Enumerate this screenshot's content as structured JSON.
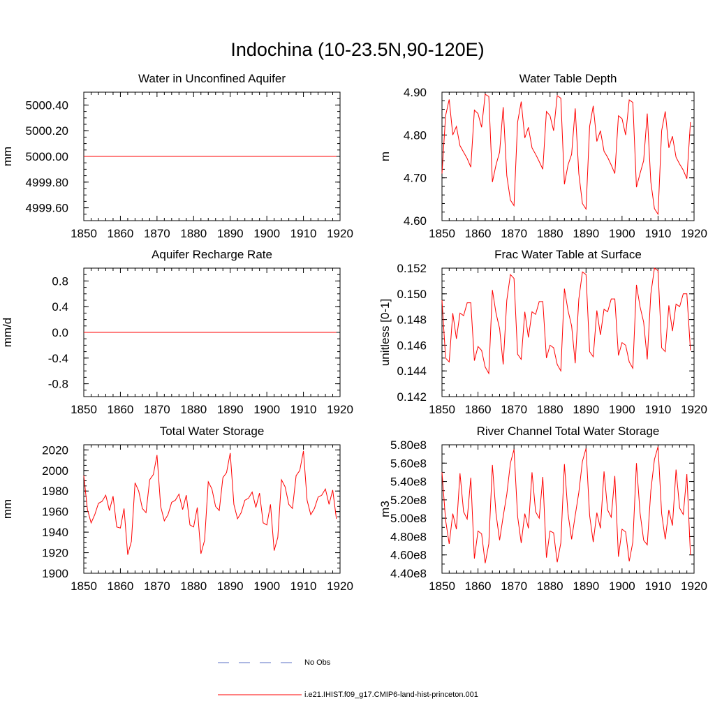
{
  "figure": {
    "title": "Indochina (10-23.5N,90-120E)",
    "legend": {
      "obs_label": "No Obs",
      "obs_color": "#5a6fc4",
      "model_label": "i.e21.IHIST.f09_g17.CMIP6-land-hist-princeton.001",
      "model_color": "#ff0000"
    }
  },
  "chart_data": [
    {
      "type": "line",
      "title": "Water in Unconfined Aquifer",
      "ylabel": "mm",
      "xlim": [
        1850,
        1920
      ],
      "ylim": [
        4999.5,
        5000.5
      ],
      "xticks": [
        1850,
        1860,
        1870,
        1880,
        1890,
        1900,
        1910,
        1920
      ],
      "yticks": [
        4999.6,
        4999.8,
        5000.0,
        5000.2,
        5000.4
      ],
      "ytick_labels": [
        "4999.60",
        "4999.80",
        "5000.00",
        "5000.20",
        "5000.40"
      ],
      "yminor": 0.05,
      "x_start": 1850,
      "series": [
        {
          "color": "#ff0000",
          "values": [
            5000,
            5000,
            5000,
            5000,
            5000,
            5000,
            5000,
            5000,
            5000,
            5000,
            5000,
            5000,
            5000,
            5000,
            5000,
            5000,
            5000,
            5000,
            5000,
            5000,
            5000,
            5000,
            5000,
            5000,
            5000,
            5000,
            5000,
            5000,
            5000,
            5000,
            5000,
            5000,
            5000,
            5000,
            5000,
            5000,
            5000,
            5000,
            5000,
            5000,
            5000,
            5000,
            5000,
            5000,
            5000,
            5000,
            5000,
            5000,
            5000,
            5000,
            5000,
            5000,
            5000,
            5000,
            5000,
            5000,
            5000,
            5000,
            5000,
            5000,
            5000,
            5000,
            5000,
            5000,
            5000,
            5000,
            5000,
            5000,
            5000,
            5000
          ]
        }
      ]
    },
    {
      "type": "line",
      "title": "Water Table Depth",
      "ylabel": "m",
      "xlim": [
        1850,
        1920
      ],
      "ylim": [
        4.6,
        4.9
      ],
      "xticks": [
        1850,
        1860,
        1870,
        1880,
        1890,
        1900,
        1910,
        1920
      ],
      "yticks": [
        4.6,
        4.7,
        4.8,
        4.9
      ],
      "ytick_labels": [
        "4.60",
        "4.70",
        "4.80",
        "4.90"
      ],
      "yminor": 0.02,
      "x_start": 1850,
      "series": [
        {
          "color": "#ff0000",
          "values": [
            4.71,
            4.845,
            4.883,
            4.8,
            4.82,
            4.775,
            4.76,
            4.745,
            4.725,
            4.858,
            4.85,
            4.818,
            4.895,
            4.89,
            4.69,
            4.73,
            4.76,
            4.865,
            4.705,
            4.648,
            4.635,
            4.83,
            4.878,
            4.793,
            4.818,
            4.77,
            4.755,
            4.738,
            4.72,
            4.855,
            4.845,
            4.81,
            4.892,
            4.886,
            4.685,
            4.73,
            4.755,
            4.862,
            4.71,
            4.64,
            4.627,
            4.82,
            4.868,
            4.785,
            4.81,
            4.762,
            4.748,
            4.73,
            4.71,
            4.845,
            4.838,
            4.8,
            4.882,
            4.876,
            4.678,
            4.71,
            4.74,
            4.85,
            4.69,
            4.628,
            4.615,
            4.81,
            4.855,
            4.77,
            4.797,
            4.748,
            4.732,
            4.718,
            4.698,
            4.83
          ]
        }
      ]
    },
    {
      "type": "line",
      "title": "Aquifer Recharge Rate",
      "ylabel": "mm/d",
      "xlim": [
        1850,
        1920
      ],
      "ylim": [
        -1.0,
        1.0
      ],
      "xticks": [
        1850,
        1860,
        1870,
        1880,
        1890,
        1900,
        1910,
        1920
      ],
      "yticks": [
        -0.8,
        -0.4,
        0.0,
        0.4,
        0.8
      ],
      "ytick_labels": [
        "-0.8",
        "-0.4",
        "0.0",
        "0.4",
        "0.8"
      ],
      "yminor": 0.1,
      "x_start": 1850,
      "series": [
        {
          "color": "#ff0000",
          "values": [
            0,
            0,
            0,
            0,
            0,
            0,
            0,
            0,
            0,
            0,
            0,
            0,
            0,
            0,
            0,
            0,
            0,
            0,
            0,
            0,
            0,
            0,
            0,
            0,
            0,
            0,
            0,
            0,
            0,
            0,
            0,
            0,
            0,
            0,
            0,
            0,
            0,
            0,
            0,
            0,
            0,
            0,
            0,
            0,
            0,
            0,
            0,
            0,
            0,
            0,
            0,
            0,
            0,
            0,
            0,
            0,
            0,
            0,
            0,
            0,
            0,
            0,
            0,
            0,
            0,
            0,
            0,
            0,
            0,
            0
          ]
        }
      ]
    },
    {
      "type": "line",
      "title": "Frac Water Table at Surface",
      "ylabel": "unitless [0-1]",
      "xlim": [
        1850,
        1920
      ],
      "ylim": [
        0.142,
        0.152
      ],
      "xticks": [
        1850,
        1860,
        1870,
        1880,
        1890,
        1900,
        1910,
        1920
      ],
      "yticks": [
        0.142,
        0.144,
        0.146,
        0.148,
        0.15,
        0.152
      ],
      "ytick_labels": [
        "0.142",
        "0.144",
        "0.146",
        "0.148",
        "0.150",
        "0.152"
      ],
      "yminor": 0.0005,
      "x_start": 1850,
      "series": [
        {
          "color": "#ff0000",
          "values": [
            0.1495,
            0.145,
            0.1447,
            0.1485,
            0.1465,
            0.1485,
            0.1483,
            0.1493,
            0.1493,
            0.1448,
            0.1459,
            0.1456,
            0.1443,
            0.1438,
            0.1503,
            0.1485,
            0.1473,
            0.1445,
            0.1495,
            0.1515,
            0.1512,
            0.1453,
            0.1449,
            0.1486,
            0.1466,
            0.1486,
            0.1484,
            0.1494,
            0.1494,
            0.145,
            0.146,
            0.1458,
            0.1445,
            0.144,
            0.1504,
            0.1487,
            0.1475,
            0.1446,
            0.1496,
            0.1517,
            0.1515,
            0.1455,
            0.1451,
            0.1487,
            0.1468,
            0.1488,
            0.1486,
            0.1496,
            0.1496,
            0.1452,
            0.1462,
            0.146,
            0.1447,
            0.1442,
            0.1507,
            0.149,
            0.1478,
            0.1449,
            0.15,
            0.152,
            0.1518,
            0.1458,
            0.1455,
            0.1491,
            0.1471,
            0.1492,
            0.149,
            0.15,
            0.15,
            0.1456
          ]
        }
      ]
    },
    {
      "type": "line",
      "title": "Total Water Storage",
      "ylabel": "mm",
      "xlim": [
        1850,
        1920
      ],
      "ylim": [
        1900,
        2025
      ],
      "xticks": [
        1850,
        1860,
        1870,
        1880,
        1890,
        1900,
        1910,
        1920
      ],
      "yticks": [
        1900,
        1920,
        1940,
        1960,
        1980,
        2000,
        2020
      ],
      "ytick_labels": [
        "1900",
        "1920",
        "1940",
        "1960",
        "1980",
        "2000",
        "2020"
      ],
      "yminor": 5,
      "x_start": 1850,
      "series": [
        {
          "color": "#ff0000",
          "values": [
            1995,
            1962,
            1949,
            1957,
            1968,
            1970,
            1976,
            1961,
            1975,
            1945,
            1944,
            1963,
            1918,
            1931,
            1988,
            1980,
            1963,
            1959,
            1991,
            1996,
            2015,
            1965,
            1951,
            1957,
            1969,
            1971,
            1977,
            1962,
            1976,
            1947,
            1945,
            1964,
            1919,
            1932,
            1989,
            1982,
            1965,
            1961,
            1993,
            1998,
            2017,
            1967,
            1953,
            1959,
            1971,
            1973,
            1979,
            1964,
            1978,
            1949,
            1947,
            1967,
            1922,
            1935,
            1991,
            1984,
            1967,
            1963,
            1995,
            2000,
            2019,
            1971,
            1957,
            1963,
            1974,
            1976,
            1982,
            1967,
            1981,
            1953
          ]
        }
      ]
    },
    {
      "type": "line",
      "title": "River Channel Total Water Storage",
      "ylabel": "m3",
      "xlim": [
        1850,
        1920
      ],
      "ylim": [
        440000000.0,
        580000000.0
      ],
      "xticks": [
        1850,
        1860,
        1870,
        1880,
        1890,
        1900,
        1910,
        1920
      ],
      "yticks": [
        440000000.0,
        460000000.0,
        480000000.0,
        500000000.0,
        520000000.0,
        540000000.0,
        560000000.0,
        580000000.0
      ],
      "ytick_labels": [
        "4.40e8",
        "4.60e8",
        "4.80e8",
        "5.00e8",
        "5.20e8",
        "5.40e8",
        "5.60e8",
        "5.80e8"
      ],
      "yminor": 10000000.0,
      "x_start": 1850,
      "series": [
        {
          "color": "#ff0000",
          "values": [
            550000000.0,
            498000000.0,
            472000000.0,
            505000000.0,
            488000000.0,
            549000000.0,
            507000000.0,
            499000000.0,
            544000000.0,
            456000000.0,
            486000000.0,
            483000000.0,
            451000000.0,
            472000000.0,
            558000000.0,
            505000000.0,
            476000000.0,
            502000000.0,
            526000000.0,
            560000000.0,
            575000000.0,
            502000000.0,
            473000000.0,
            505000000.0,
            489000000.0,
            550000000.0,
            507000000.0,
            500000000.0,
            545000000.0,
            457000000.0,
            486000000.0,
            484000000.0,
            452000000.0,
            473000000.0,
            559000000.0,
            505000000.0,
            477000000.0,
            503000000.0,
            528000000.0,
            562000000.0,
            576000000.0,
            503000000.0,
            474000000.0,
            506000000.0,
            489000000.0,
            551000000.0,
            509000000.0,
            501000000.0,
            546000000.0,
            458000000.0,
            488000000.0,
            485000000.0,
            453000000.0,
            474000000.0,
            560000000.0,
            506000000.0,
            476000000.0,
            471000000.0,
            530000000.0,
            564000000.0,
            578000000.0,
            505000000.0,
            477000000.0,
            509000000.0,
            492000000.0,
            553000000.0,
            511000000.0,
            504000000.0,
            548000000.0,
            460000000.0
          ]
        }
      ]
    }
  ]
}
